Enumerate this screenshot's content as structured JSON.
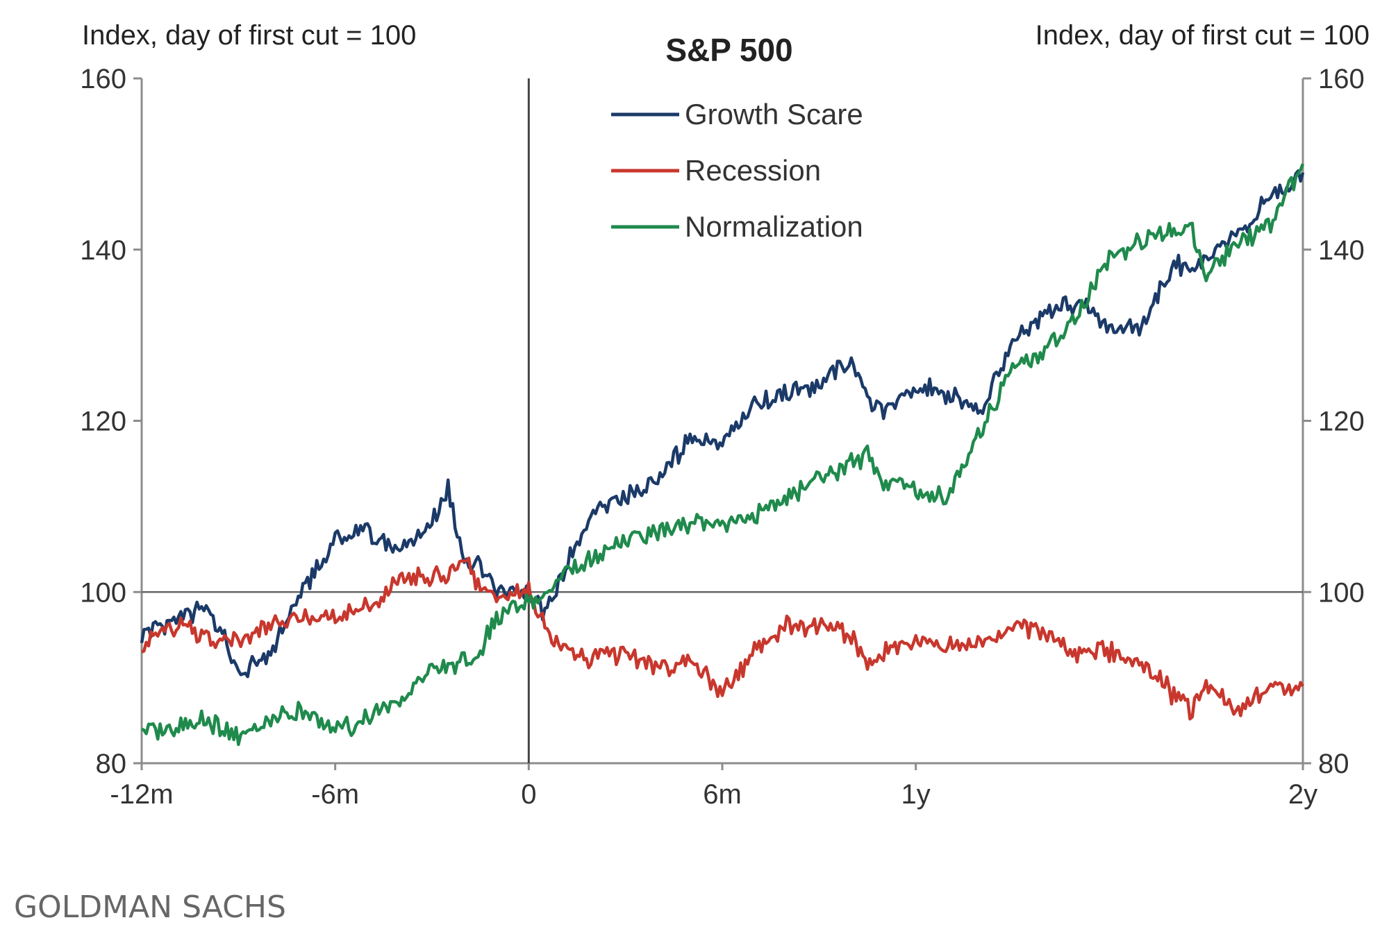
{
  "chart_data": {
    "type": "line",
    "title": "S&P 500",
    "ylabel_left": "Index, day of first cut = 100",
    "ylabel_right": "Index, day of first cut = 100",
    "ylim": [
      80,
      160
    ],
    "yticks": [
      "80",
      "100",
      "120",
      "140",
      "160"
    ],
    "xlim": [
      -12,
      24
    ],
    "xticks": [
      {
        "v": -12,
        "label": "-12m"
      },
      {
        "v": -6,
        "label": "-6m"
      },
      {
        "v": 0,
        "label": "0"
      },
      {
        "v": 6,
        "label": "6m"
      },
      {
        "v": 12,
        "label": "1y"
      },
      {
        "v": 24,
        "label": "2y"
      }
    ],
    "reference_lines": {
      "x": 0,
      "y": 100
    },
    "legend_position": "top-center",
    "x": [
      -12,
      -11,
      -10,
      -9.5,
      -9,
      -8,
      -7,
      -6,
      -5,
      -4,
      -3,
      -2.5,
      -2,
      -1.5,
      -1,
      0,
      0.5,
      1,
      2,
      3,
      4,
      5,
      6,
      7,
      8,
      9,
      10,
      10.5,
      11,
      12,
      13,
      14,
      15,
      16,
      17,
      18,
      19,
      20,
      20.5,
      21,
      22,
      23,
      24
    ],
    "series": [
      {
        "name": "Growth Scare",
        "color": "#1b3a68",
        "values": [
          95,
          97,
          98,
          95,
          90,
          93,
          100,
          106,
          107,
          105,
          108,
          112,
          103,
          103,
          100,
          100,
          97,
          102,
          109,
          111,
          113,
          118,
          117,
          122,
          123,
          124,
          127,
          123,
          121,
          124,
          123,
          121,
          129,
          133,
          134,
          131,
          131,
          138,
          138,
          139,
          142,
          146,
          149
        ]
      },
      {
        "name": "Recession",
        "color": "#c8372d",
        "values": [
          94,
          96,
          95,
          94,
          94,
          96,
          97,
          97,
          98,
          101,
          102,
          102,
          104,
          100,
          99,
          100,
          96,
          94,
          92,
          93,
          91,
          92,
          88,
          93,
          96,
          96,
          95,
          92,
          93,
          94,
          94,
          94,
          96,
          95,
          93,
          93,
          92,
          88,
          86,
          89,
          86,
          89,
          89
        ]
      },
      {
        "name": "Normalization",
        "color": "#1f8a4c",
        "values": [
          84,
          84,
          85,
          84,
          83,
          85,
          86,
          84,
          85,
          87,
          91,
          91,
          92,
          93,
          97,
          99,
          99,
          102,
          104,
          106,
          107,
          108,
          108,
          109,
          111,
          113,
          115,
          116,
          113,
          112,
          111,
          119,
          126,
          128,
          132,
          139,
          141,
          142,
          143,
          137,
          141,
          143,
          150
        ]
      }
    ]
  },
  "source": "GOLDMAN SACHS"
}
